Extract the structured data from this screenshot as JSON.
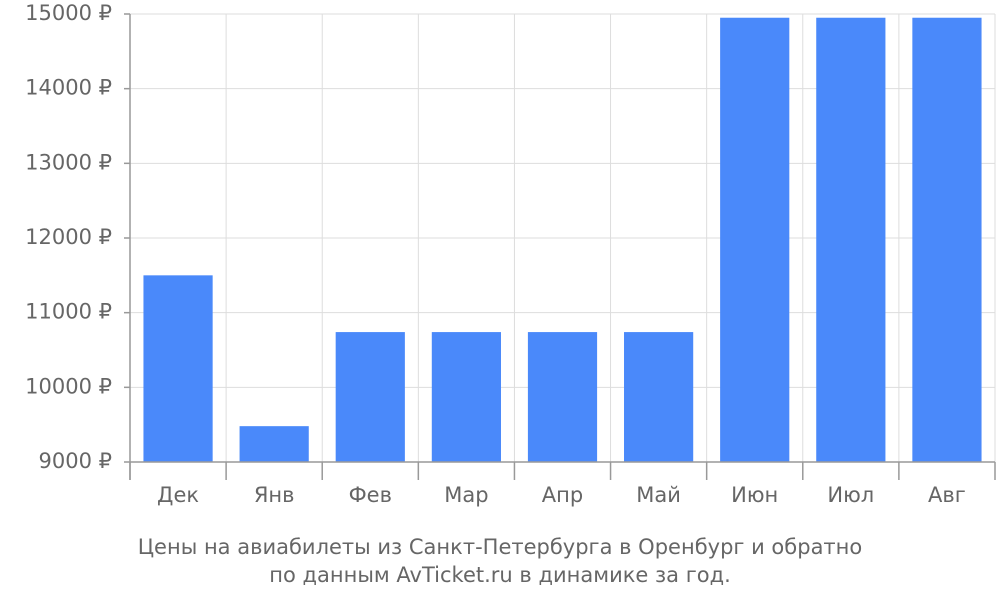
{
  "chart_data": {
    "type": "bar",
    "title": "Цены на авиабилеты из Санкт-Петербурга в Оренбург и обратно",
    "subtitle": "по данным AvTicket.ru в динамике за год.",
    "categories": [
      "Дек",
      "Янв",
      "Фев",
      "Мар",
      "Апр",
      "Май",
      "Июн",
      "Июл",
      "Авг"
    ],
    "values": [
      11500,
      9480,
      10740,
      10740,
      10740,
      10740,
      14950,
      14950,
      14950
    ],
    "color": "#4a89fa",
    "ylim": [
      9000,
      15000
    ],
    "yticks": [
      {
        "value": 9000,
        "label": "9000 ₽"
      },
      {
        "value": 10000,
        "label": "10000 ₽"
      },
      {
        "value": 11000,
        "label": "11000 ₽"
      },
      {
        "value": 12000,
        "label": "12000 ₽"
      },
      {
        "value": 13000,
        "label": "13000 ₽"
      },
      {
        "value": 14000,
        "label": "14000 ₽"
      },
      {
        "value": 15000,
        "label": "15000 ₽"
      }
    ],
    "grid": true
  }
}
